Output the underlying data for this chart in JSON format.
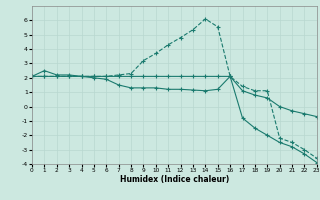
{
  "xlabel": "Humidex (Indice chaleur)",
  "xlim": [
    0,
    23
  ],
  "ylim": [
    -4,
    7
  ],
  "xticks": [
    0,
    1,
    2,
    3,
    4,
    5,
    6,
    7,
    8,
    9,
    10,
    11,
    12,
    13,
    14,
    15,
    16,
    17,
    18,
    19,
    20,
    21,
    22,
    23
  ],
  "yticks": [
    -4,
    -3,
    -2,
    -1,
    0,
    1,
    2,
    3,
    4,
    5,
    6
  ],
  "bg_color": "#cce8e0",
  "line_color": "#1a7a6e",
  "grid_color": "#b8d8d0",
  "line1_x": [
    0,
    1,
    2,
    3,
    4,
    5,
    6,
    7,
    8,
    9,
    10,
    11,
    12,
    13,
    14,
    15,
    16,
    17,
    18,
    19,
    20,
    21,
    22,
    23
  ],
  "line1_y": [
    2.1,
    2.5,
    2.2,
    2.2,
    2.1,
    2.0,
    1.9,
    1.5,
    1.3,
    1.3,
    1.3,
    1.2,
    1.2,
    1.15,
    1.1,
    1.2,
    2.1,
    1.1,
    0.8,
    0.6,
    0.0,
    -0.3,
    -0.5,
    -0.7
  ],
  "line2_x": [
    0,
    1,
    2,
    3,
    4,
    5,
    6,
    7,
    8,
    9,
    10,
    11,
    12,
    13,
    14,
    15,
    16,
    17,
    18,
    19,
    20,
    21,
    22,
    23
  ],
  "line2_y": [
    2.1,
    2.1,
    2.1,
    2.1,
    2.1,
    2.1,
    2.1,
    2.2,
    2.3,
    3.2,
    3.7,
    4.3,
    4.8,
    5.35,
    6.1,
    5.55,
    2.1,
    1.4,
    1.1,
    1.1,
    -2.2,
    -2.5,
    -3.0,
    -3.6
  ],
  "line3_x": [
    0,
    1,
    2,
    3,
    4,
    5,
    6,
    7,
    8,
    9,
    10,
    11,
    12,
    13,
    14,
    15,
    16,
    17,
    18,
    19,
    20,
    21,
    22,
    23
  ],
  "line3_y": [
    2.1,
    2.1,
    2.1,
    2.1,
    2.1,
    2.1,
    2.1,
    2.1,
    2.1,
    2.1,
    2.1,
    2.1,
    2.1,
    2.1,
    2.1,
    2.1,
    2.1,
    -0.8,
    -1.5,
    -2.0,
    -2.5,
    -2.8,
    -3.3,
    -3.9
  ]
}
